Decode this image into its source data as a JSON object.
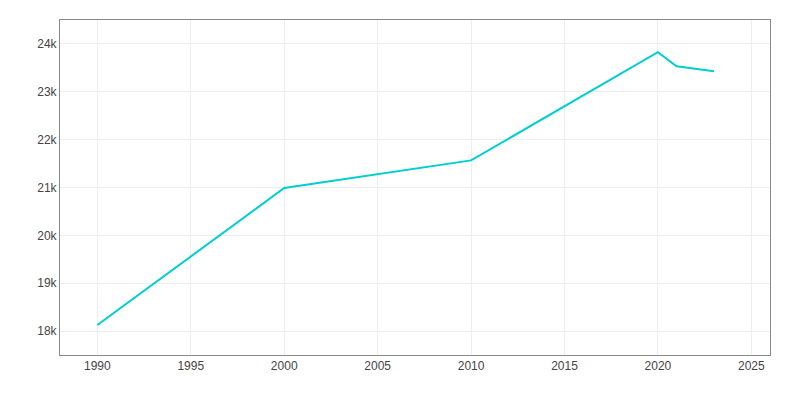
{
  "chart_data": {
    "type": "line",
    "x": [
      1990,
      2000,
      2010,
      2020,
      2021,
      2022,
      2023
    ],
    "values": [
      18126,
      20990,
      21567,
      23827,
      23535,
      23480,
      23430
    ],
    "color": "#00CED1",
    "xlim": [
      1988,
      2026
    ],
    "ylim": [
      17500,
      24500
    ],
    "xticks": [
      1990,
      1995,
      2000,
      2005,
      2010,
      2015,
      2020,
      2025
    ],
    "yticks": [
      {
        "value": 18000,
        "label": "18k"
      },
      {
        "value": 19000,
        "label": "19k"
      },
      {
        "value": 20000,
        "label": "20k"
      },
      {
        "value": 21000,
        "label": "21k"
      },
      {
        "value": 22000,
        "label": "22k"
      },
      {
        "value": 23000,
        "label": "23k"
      },
      {
        "value": 24000,
        "label": "24k"
      }
    ],
    "grid": true
  }
}
